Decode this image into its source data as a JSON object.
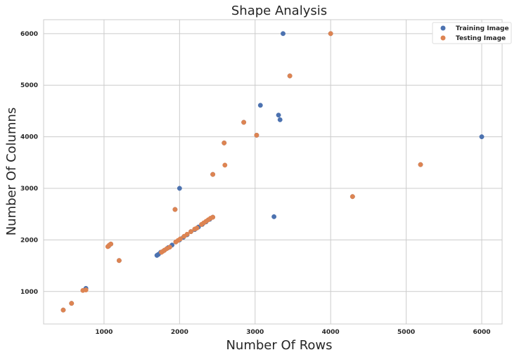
{
  "chart_data": {
    "type": "scatter",
    "title": "Shape Analysis",
    "xlabel": "Number Of Rows",
    "ylabel": "Number Of Columns",
    "xlim": [
      200,
      6270
    ],
    "ylim": [
      370,
      6270
    ],
    "xticks": [
      1000,
      2000,
      3000,
      4000,
      5000,
      6000
    ],
    "yticks": [
      1000,
      2000,
      3000,
      4000,
      5000,
      6000
    ],
    "grid": true,
    "legend_position": "top-right",
    "series": [
      {
        "name": "Training Image",
        "color": "#4c72b0",
        "points": [
          [
            3370,
            6000
          ],
          [
            4000,
            6000
          ],
          [
            3460,
            5180
          ],
          [
            3070,
            4610
          ],
          [
            3310,
            4420
          ],
          [
            3330,
            4330
          ],
          [
            2850,
            4280
          ],
          [
            3020,
            4030
          ],
          [
            2590,
            3880
          ],
          [
            6000,
            4000
          ],
          [
            5190,
            3460
          ],
          [
            2440,
            3270
          ],
          [
            2000,
            3000
          ],
          [
            4290,
            2840
          ],
          [
            1940,
            2590
          ],
          [
            3250,
            2450
          ],
          [
            2440,
            2440
          ],
          [
            2400,
            2400
          ],
          [
            2350,
            2350
          ],
          [
            2300,
            2300
          ],
          [
            2250,
            2250
          ],
          [
            2200,
            2200
          ],
          [
            2150,
            2160
          ],
          [
            2100,
            2100
          ],
          [
            2050,
            2050
          ],
          [
            2000,
            2000
          ],
          [
            1950,
            1960
          ],
          [
            1900,
            1900
          ],
          [
            1850,
            1850
          ],
          [
            1800,
            1800
          ],
          [
            1750,
            1760
          ],
          [
            1720,
            1720
          ],
          [
            1700,
            1700
          ],
          [
            1090,
            1920
          ],
          [
            1060,
            1880
          ],
          [
            1200,
            1600
          ],
          [
            760,
            1060
          ],
          [
            570,
            770
          ],
          [
            460,
            640
          ]
        ]
      },
      {
        "name": "Testing Image",
        "color": "#dd8452",
        "points": [
          [
            4000,
            6000
          ],
          [
            3460,
            5180
          ],
          [
            2850,
            4280
          ],
          [
            3020,
            4030
          ],
          [
            2590,
            3880
          ],
          [
            2600,
            3450
          ],
          [
            5190,
            3460
          ],
          [
            2440,
            3270
          ],
          [
            4290,
            2840
          ],
          [
            1940,
            2590
          ],
          [
            2440,
            2440
          ],
          [
            2410,
            2420
          ],
          [
            2380,
            2390
          ],
          [
            2350,
            2360
          ],
          [
            2320,
            2330
          ],
          [
            2290,
            2300
          ],
          [
            2230,
            2230
          ],
          [
            2200,
            2210
          ],
          [
            2150,
            2160
          ],
          [
            2100,
            2110
          ],
          [
            2060,
            2070
          ],
          [
            2010,
            2020
          ],
          [
            1980,
            1990
          ],
          [
            1950,
            1960
          ],
          [
            1870,
            1860
          ],
          [
            1830,
            1830
          ],
          [
            1800,
            1800
          ],
          [
            1780,
            1780
          ],
          [
            1760,
            1760
          ],
          [
            1090,
            1920
          ],
          [
            1070,
            1900
          ],
          [
            1050,
            1870
          ],
          [
            1200,
            1600
          ],
          [
            720,
            1020
          ],
          [
            760,
            1030
          ],
          [
            570,
            770
          ],
          [
            460,
            640
          ]
        ]
      }
    ]
  }
}
